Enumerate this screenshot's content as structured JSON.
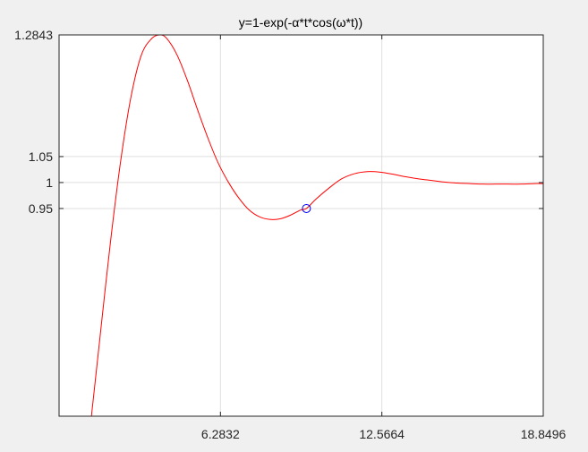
{
  "chart_data": {
    "type": "line",
    "title": "y=1-exp(-α*t*cos(ω*t))",
    "xlabel": "",
    "ylabel": "",
    "xlim": [
      0,
      18.8496
    ],
    "ylim": [
      0.55,
      1.2843
    ],
    "xticks": [
      6.2832,
      12.5664,
      18.8496
    ],
    "xtick_labels": [
      "6.2832",
      "12.5664",
      "18.8496"
    ],
    "yticks": [
      0.95,
      1,
      1.05,
      1.2843
    ],
    "ytick_labels": [
      "0.95",
      "1",
      "1.05",
      "1.2843"
    ],
    "grid": true,
    "series": [
      {
        "color": "#ff0000",
        "x": [
          1.26,
          1.6,
          2.0,
          2.4,
          2.8,
          3.2,
          3.6,
          3.93,
          4.2,
          4.6,
          5.0,
          5.4,
          5.8,
          6.2,
          6.6,
          7.0,
          7.4,
          7.8,
          8.2,
          8.6,
          9.0,
          9.4,
          9.63,
          10.0,
          10.5,
          11.0,
          11.5,
          12.0,
          12.5,
          13.0,
          13.5,
          14.0,
          14.5,
          15.0,
          15.5,
          16.0,
          16.5,
          17.0,
          17.5,
          18.0,
          18.5,
          18.85
        ],
        "y": [
          0.55,
          0.705,
          0.885,
          1.042,
          1.165,
          1.245,
          1.277,
          1.2843,
          1.277,
          1.245,
          1.196,
          1.139,
          1.085,
          1.037,
          1.0,
          0.97,
          0.947,
          0.934,
          0.929,
          0.93,
          0.937,
          0.947,
          0.95,
          0.968,
          0.989,
          1.007,
          1.017,
          1.021,
          1.02,
          1.016,
          1.011,
          1.007,
          1.004,
          1.001,
          0.999,
          0.998,
          0.997,
          0.997,
          0.997,
          0.997,
          0.998,
          0.998
        ]
      }
    ],
    "marker": {
      "x": 9.63,
      "y": 0.95,
      "style": "open circle",
      "color": "#0000ff"
    }
  }
}
